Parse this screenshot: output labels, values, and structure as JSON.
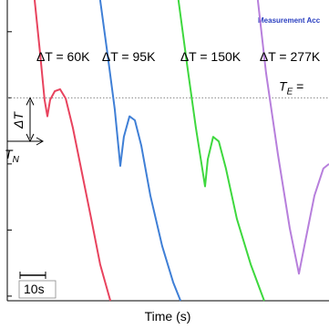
{
  "chart_data": {
    "type": "line",
    "title": "Measurement Acc",
    "x_label": "Time (s)",
    "xlim": [
      0,
      126.1
    ],
    "ylim": [
      -0.07,
      4.48
    ],
    "yticks": [
      0,
      1,
      2,
      3,
      4
    ],
    "series": [
      {
        "name": "ΔT = 60K",
        "color": "#e8435e",
        "x": [
          10.7,
          12.9,
          14.6,
          15.7,
          16.8,
          18.6,
          20.7,
          22.9,
          25.7,
          29.3,
          32.9,
          36.4,
          40.4
        ],
        "values": [
          4.48,
          3.66,
          2.97,
          2.72,
          2.97,
          3.1,
          3.13,
          2.99,
          2.55,
          1.86,
          1.17,
          0.48,
          -0.07
        ]
      },
      {
        "name": "ΔT = 95K",
        "color": "#3f7fd6",
        "x": [
          36.4,
          39.3,
          42.1,
          44.3,
          45.7,
          47.9,
          50.0,
          52.5,
          56.1,
          60.7,
          65.0,
          67.9
        ],
        "values": [
          4.48,
          3.66,
          2.83,
          1.97,
          2.41,
          2.72,
          2.66,
          2.28,
          1.52,
          0.76,
          0.21,
          -0.07
        ]
      },
      {
        "name": "ΔT = 150K",
        "color": "#3ed83e",
        "x": [
          67.1,
          70.4,
          73.9,
          77.5,
          78.6,
          80.7,
          82.9,
          85.7,
          90.0,
          95.4,
          100.7
        ],
        "values": [
          4.48,
          3.52,
          2.55,
          1.66,
          2.07,
          2.41,
          2.34,
          1.93,
          1.17,
          0.48,
          -0.07
        ]
      },
      {
        "name": "ΔT = 277K",
        "color": "#b77fdc",
        "x": [
          98.2,
          101.4,
          106.1,
          110.7,
          114.3,
          116.8,
          120.4,
          123.9,
          126.1
        ],
        "values": [
          4.48,
          3.38,
          2.14,
          1.03,
          0.34,
          0.83,
          1.52,
          1.93,
          2.0
        ]
      }
    ],
    "reference_line": {
      "text": "T",
      "sub": "E",
      "suffix": " =",
      "value": 3
    },
    "delta_label": "ΔT",
    "nucleation_label": {
      "text": "T",
      "sub": "N"
    },
    "scale_bar": {
      "label": "10s",
      "length": 10
    }
  }
}
